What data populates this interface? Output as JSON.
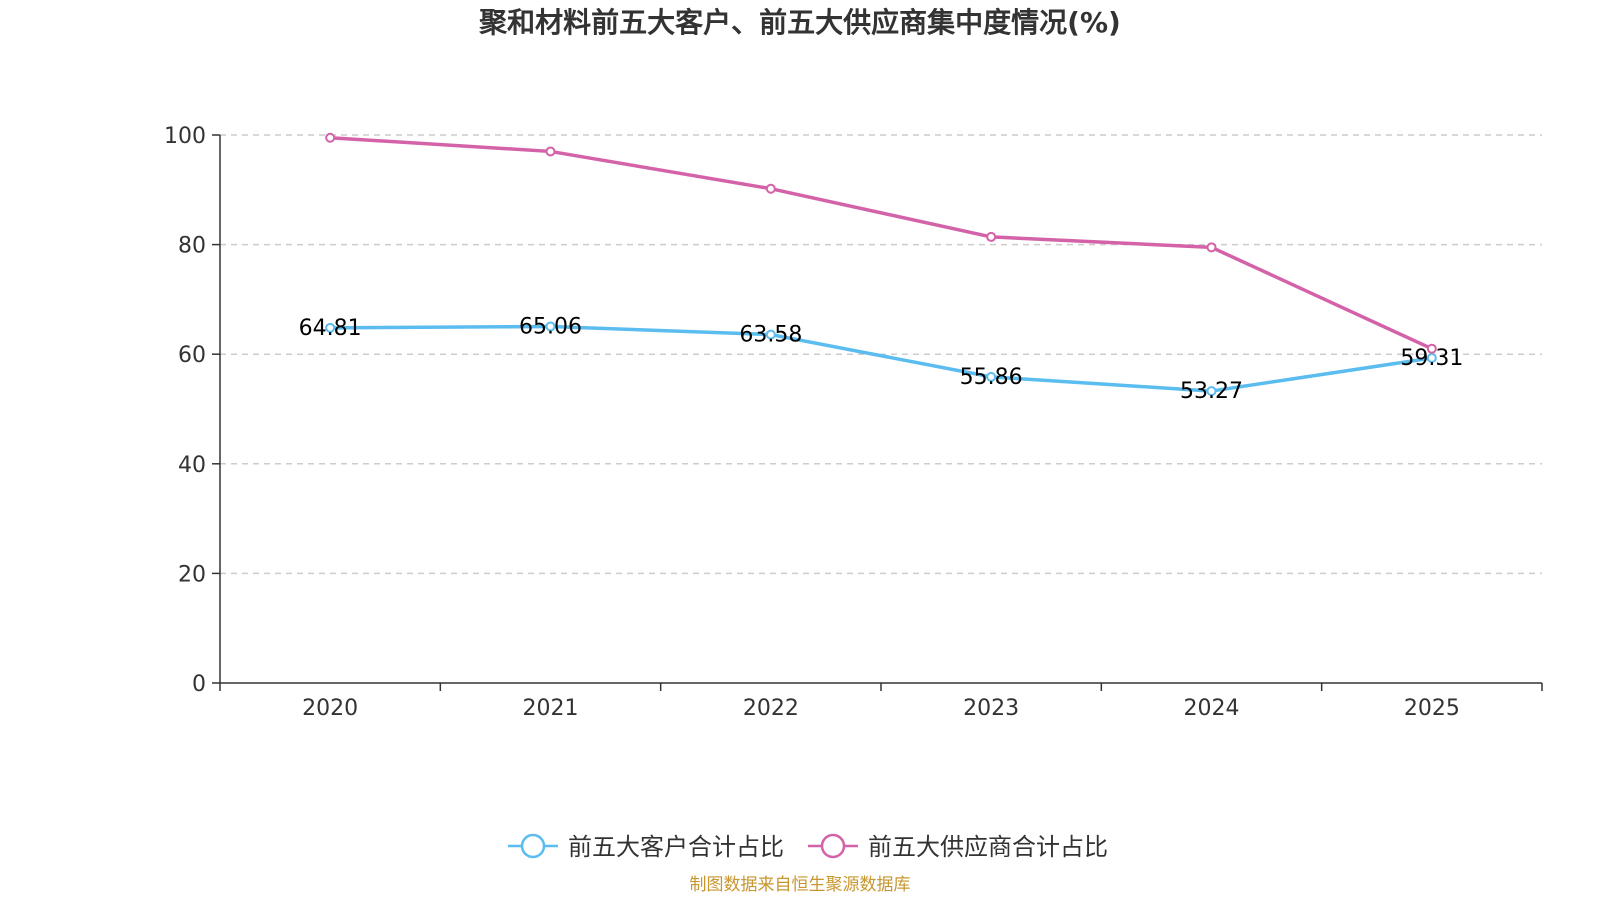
{
  "chart_data": {
    "type": "line",
    "title": "聚和材料前五大客户、前五大供应商集中度情况(%)",
    "categories": [
      "2020",
      "2021",
      "2022",
      "2023",
      "2024",
      "2025"
    ],
    "ylim": [
      0,
      100
    ],
    "yticks": [
      0,
      20,
      40,
      60,
      80,
      100
    ],
    "grid": true,
    "legend_position": "bottom-center",
    "series": [
      {
        "name": "前五大客户合计占比",
        "color": "#5bbcf0",
        "values": [
          64.81,
          65.06,
          63.58,
          55.86,
          53.27,
          59.31
        ],
        "labels": [
          "64.81",
          "65.06",
          "63.58",
          "55.86",
          "53.27",
          "59.31"
        ],
        "show_labels": true
      },
      {
        "name": "前五大供应商合计占比",
        "color": "#d462a8",
        "values": [
          99.5,
          97.0,
          90.2,
          81.4,
          79.5,
          61.0
        ],
        "show_labels": false
      }
    ]
  },
  "source": {
    "text": "制图数据来自恒生聚源数据库",
    "color": "#c8962e"
  }
}
